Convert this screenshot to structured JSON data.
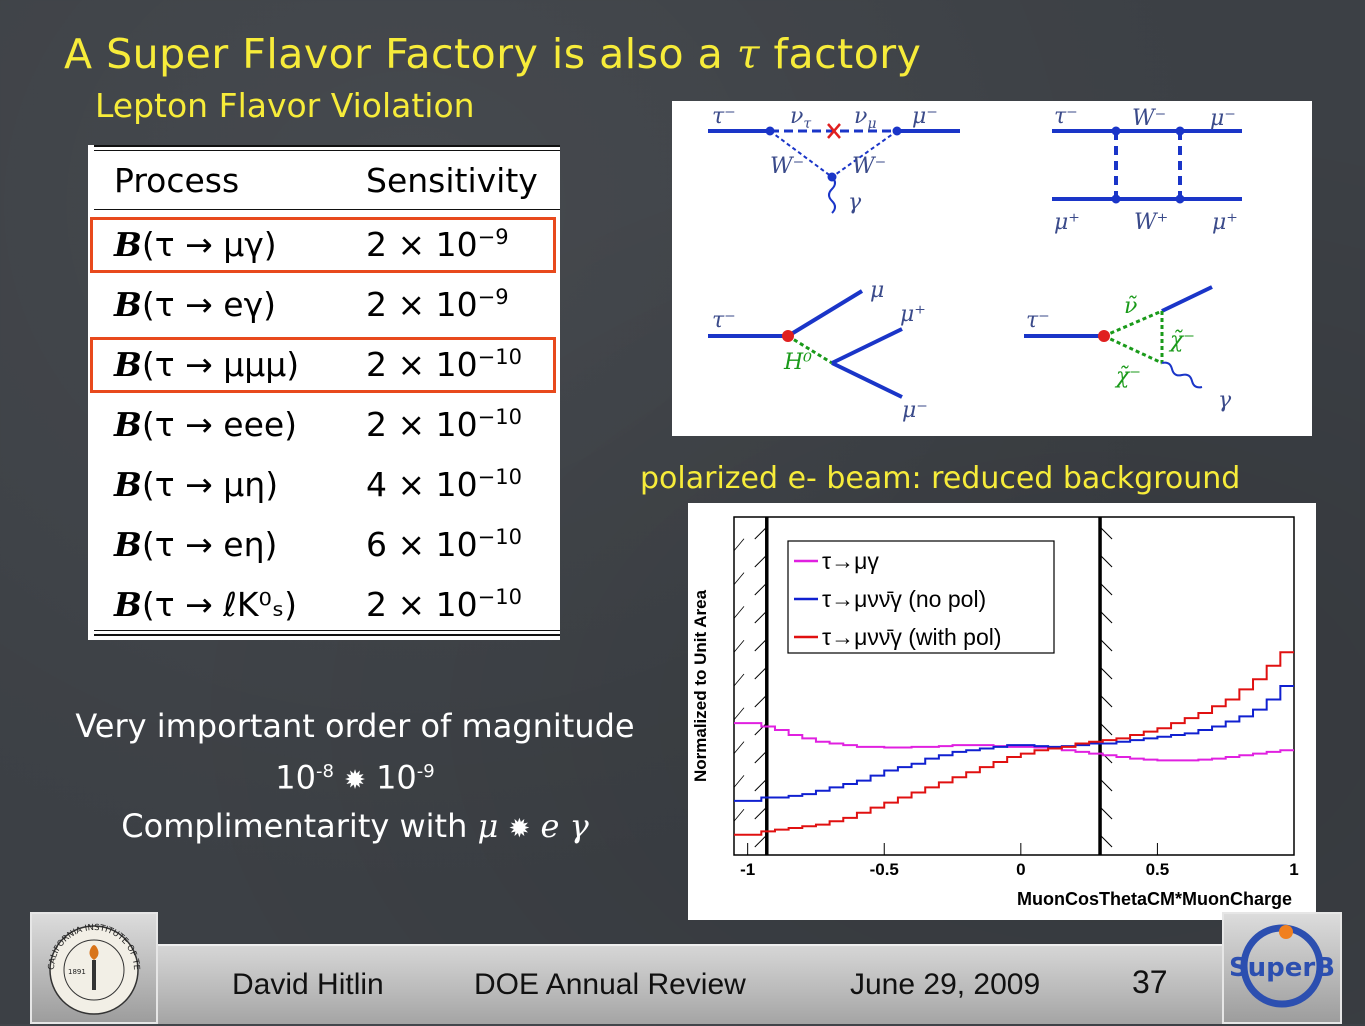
{
  "slide": {
    "title_prefix": "A Super Flavor Factory is also a ",
    "title_tau": "τ",
    "title_suffix": " factory",
    "subtitle": "Lepton Flavor Violation"
  },
  "table": {
    "header_process": "Process",
    "header_sensitivity": "Sensitivity",
    "rows": [
      {
        "proc_B": "B",
        "proc": "(τ → μγ)",
        "mant": "2 × 10",
        "exp": "−9",
        "highlight": true
      },
      {
        "proc_B": "B",
        "proc": "(τ → eγ)",
        "mant": "2 × 10",
        "exp": "−9",
        "highlight": false
      },
      {
        "proc_B": "B",
        "proc": "(τ → μμμ)",
        "mant": "2 × 10",
        "exp": "−10",
        "highlight": true
      },
      {
        "proc_B": "B",
        "proc": "(τ → eee)",
        "mant": "2 × 10",
        "exp": "−10",
        "highlight": false
      },
      {
        "proc_B": "B",
        "proc": "(τ → μη)",
        "mant": "4 × 10",
        "exp": "−10",
        "highlight": false
      },
      {
        "proc_B": "B",
        "proc": "(τ → eη)",
        "mant": "6 × 10",
        "exp": "−10",
        "highlight": false
      },
      {
        "proc_B": "B",
        "proc": "(τ → ℓK⁰ₛ)",
        "mant": "2 × 10",
        "exp": "−10",
        "highlight": false
      }
    ]
  },
  "feynman": {
    "d1": {
      "tau": "τ⁻",
      "nu_tau": "ν",
      "nu_tau_sub": "τ",
      "nu_mu": "ν",
      "nu_mu_sub": "μ",
      "mu": "μ⁻",
      "w_left": "W⁻",
      "w_right": "W⁻",
      "gamma": "γ"
    },
    "d2": {
      "tau": "τ⁻",
      "w_top": "W⁻",
      "mu_top": "μ⁻",
      "mu_plus": "μ⁺",
      "w_bot": "W⁺",
      "mu_plus2": "μ⁺"
    },
    "d3": {
      "tau": "τ⁻",
      "h0": "H⁰",
      "mu_top": "μ",
      "mu_plus": "μ⁺",
      "mu_minus": "μ⁻"
    },
    "d4": {
      "tau": "τ⁻",
      "nu_tilde": "ν̃",
      "chi_right": "χ̃⁻",
      "chi_left": "χ̃⁻",
      "gamma": "γ"
    }
  },
  "plot_caption": "polarized e- beam: reduced background",
  "chart_data": {
    "type": "line",
    "xlabel": "MuonCosThetaCM*MuonCharge",
    "ylabel": "Normalized to Unit Area",
    "xlim": [
      -1.05,
      1.0
    ],
    "ylim": [
      0,
      1
    ],
    "x_ticks": [
      "-1",
      "-0.5",
      "0",
      "0.5",
      "1"
    ],
    "x_tick_values": [
      -1,
      -0.5,
      0,
      0.5,
      1
    ],
    "cut_lines": [
      -0.93,
      0.29
    ],
    "legend_position": "top-left",
    "series": [
      {
        "name": "τ→μγ",
        "color": "#e020e0",
        "x": [
          -1.05,
          -0.95,
          -0.9,
          -0.85,
          -0.8,
          -0.75,
          -0.7,
          -0.65,
          -0.6,
          -0.55,
          -0.5,
          -0.45,
          -0.4,
          -0.35,
          -0.3,
          -0.25,
          -0.2,
          -0.15,
          -0.1,
          -0.05,
          0,
          0.05,
          0.1,
          0.15,
          0.2,
          0.25,
          0.3,
          0.35,
          0.4,
          0.45,
          0.5,
          0.55,
          0.6,
          0.65,
          0.7,
          0.75,
          0.8,
          0.85,
          0.9,
          0.95,
          1.0
        ],
        "y": [
          0.39,
          0.38,
          0.37,
          0.355,
          0.345,
          0.335,
          0.33,
          0.325,
          0.32,
          0.32,
          0.318,
          0.318,
          0.32,
          0.32,
          0.322,
          0.325,
          0.325,
          0.325,
          0.322,
          0.32,
          0.32,
          0.318,
          0.315,
          0.31,
          0.305,
          0.3,
          0.295,
          0.29,
          0.285,
          0.282,
          0.28,
          0.28,
          0.28,
          0.282,
          0.285,
          0.29,
          0.295,
          0.3,
          0.305,
          0.31,
          0.33
        ]
      },
      {
        "name": "τ→μνν̄γ (no pol)",
        "color": "#1020d0",
        "x": [
          -1.05,
          -0.95,
          -0.9,
          -0.85,
          -0.8,
          -0.75,
          -0.7,
          -0.65,
          -0.6,
          -0.55,
          -0.5,
          -0.45,
          -0.4,
          -0.35,
          -0.3,
          -0.25,
          -0.2,
          -0.15,
          -0.1,
          -0.05,
          0,
          0.05,
          0.1,
          0.15,
          0.2,
          0.25,
          0.3,
          0.35,
          0.4,
          0.45,
          0.5,
          0.55,
          0.6,
          0.65,
          0.7,
          0.75,
          0.8,
          0.85,
          0.9,
          0.95,
          1.0
        ],
        "y": [
          0.16,
          0.17,
          0.17,
          0.175,
          0.18,
          0.19,
          0.2,
          0.21,
          0.22,
          0.235,
          0.25,
          0.26,
          0.27,
          0.285,
          0.295,
          0.305,
          0.31,
          0.315,
          0.32,
          0.325,
          0.325,
          0.322,
          0.32,
          0.322,
          0.325,
          0.33,
          0.33,
          0.335,
          0.34,
          0.345,
          0.35,
          0.355,
          0.36,
          0.37,
          0.38,
          0.395,
          0.41,
          0.43,
          0.46,
          0.5,
          0.56
        ]
      },
      {
        "name": "τ→μνν̄γ (with pol)",
        "color": "#e01010",
        "x": [
          -1.05,
          -0.95,
          -0.9,
          -0.85,
          -0.8,
          -0.75,
          -0.7,
          -0.65,
          -0.6,
          -0.55,
          -0.5,
          -0.45,
          -0.4,
          -0.35,
          -0.3,
          -0.25,
          -0.2,
          -0.15,
          -0.1,
          -0.05,
          0,
          0.05,
          0.1,
          0.15,
          0.2,
          0.25,
          0.3,
          0.35,
          0.4,
          0.45,
          0.5,
          0.55,
          0.6,
          0.65,
          0.7,
          0.75,
          0.8,
          0.85,
          0.9,
          0.95,
          1.0
        ],
        "y": [
          0.06,
          0.07,
          0.075,
          0.08,
          0.085,
          0.09,
          0.1,
          0.11,
          0.125,
          0.14,
          0.155,
          0.17,
          0.185,
          0.2,
          0.215,
          0.23,
          0.245,
          0.26,
          0.275,
          0.29,
          0.3,
          0.31,
          0.315,
          0.32,
          0.33,
          0.335,
          0.34,
          0.345,
          0.355,
          0.365,
          0.375,
          0.39,
          0.405,
          0.42,
          0.44,
          0.46,
          0.49,
          0.52,
          0.56,
          0.6,
          0.68
        ]
      }
    ]
  },
  "notes": {
    "line1": "Very important order of magnitude",
    "l2_a": "10",
    "l2_a_exp": "-8",
    "l2_arrow": "✹",
    "l2_b": "10",
    "l2_b_exp": "-9",
    "l3_text": "Complimentarity with ",
    "l3_mu": "μ",
    "l3_arrow": "✹",
    "l3_e": "e",
    "l3_gamma": "γ"
  },
  "footer": {
    "author": "David Hitlin",
    "event": "DOE Annual Review",
    "date": "June 29, 2009",
    "page": "37",
    "logo_left_text": "CALIFORNIA INSTITUTE OF TECHNOLOGY",
    "logo_left_year": "1891",
    "logo_right_text": "SuperB"
  }
}
